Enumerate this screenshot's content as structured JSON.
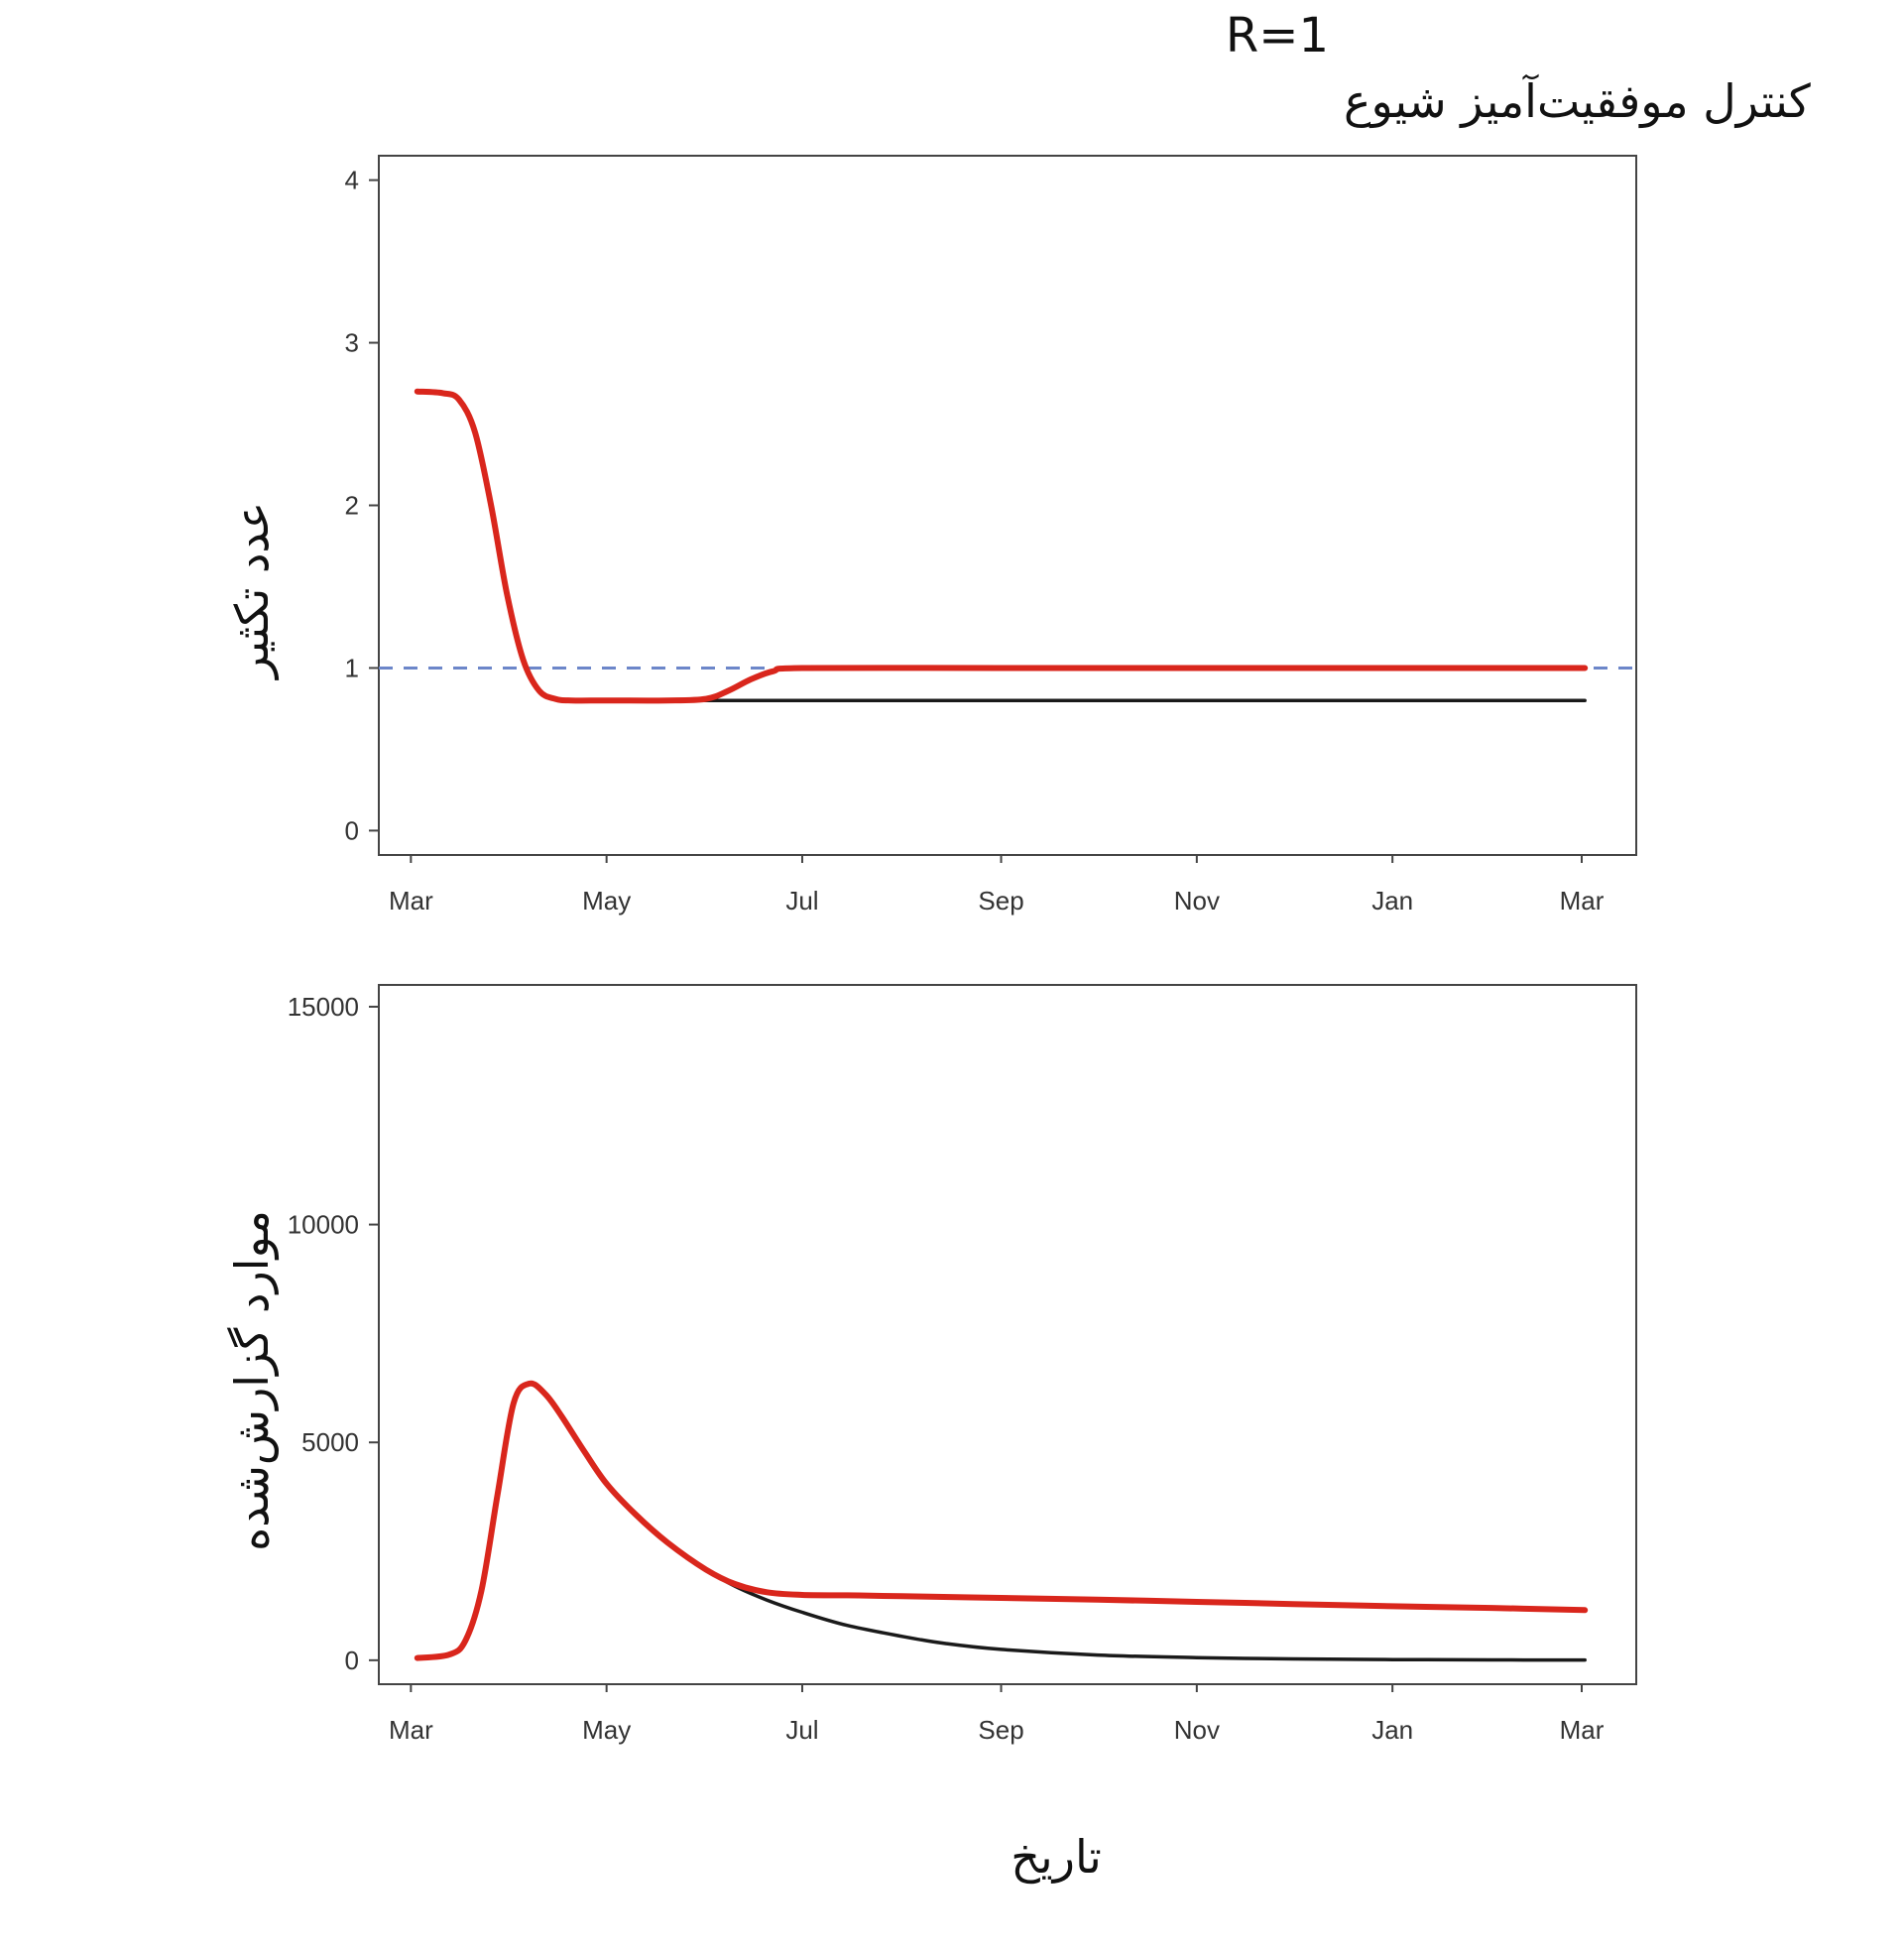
{
  "header": {
    "title_line1": "R=1",
    "title_line2": "کنترل موفقیت‌آمیز شیوع"
  },
  "colors": {
    "series_red": "#d9261c",
    "series_black": "#1a1a1a",
    "reference_line": "#6c86c9",
    "frame": "#444444"
  },
  "chart_data": [
    {
      "type": "line",
      "ylabel": "عدد تکثیر",
      "x_tick_labels": [
        "Mar",
        "May",
        "Jul",
        "Sep",
        "Nov",
        "Jan",
        "Mar"
      ],
      "x_ticks": [
        "2020-03-01",
        "2020-05-01",
        "2020-07-01",
        "2020-09-01",
        "2020-11-01",
        "2021-01-01",
        "2021-03-01"
      ],
      "xlim": [
        "2020-02-20",
        "2021-03-18"
      ],
      "ylim": [
        -0.15,
        4.15
      ],
      "y_ticks": [
        0,
        1,
        2,
        3,
        4
      ],
      "reference_line": {
        "y": 1,
        "style": "dashed"
      },
      "grid": false,
      "series": [
        {
          "color": "#1a1a1a",
          "x": [
            "2020-03-03",
            "2020-03-11",
            "2020-03-16",
            "2020-03-21",
            "2020-03-26",
            "2020-03-31",
            "2020-04-05",
            "2020-04-10",
            "2020-04-15",
            "2020-04-20",
            "2020-05-01",
            "2020-05-20",
            "2020-06-10",
            "2020-07-01",
            "2020-09-01",
            "2020-11-01",
            "2021-01-01",
            "2021-03-02"
          ],
          "y": [
            2.7,
            2.69,
            2.65,
            2.45,
            2.0,
            1.45,
            1.05,
            0.86,
            0.81,
            0.8,
            0.8,
            0.8,
            0.8,
            0.8,
            0.8,
            0.8,
            0.8,
            0.8
          ]
        },
        {
          "color": "#d9261c",
          "x": [
            "2020-03-03",
            "2020-03-11",
            "2020-03-16",
            "2020-03-21",
            "2020-03-26",
            "2020-03-31",
            "2020-04-05",
            "2020-04-10",
            "2020-04-15",
            "2020-04-20",
            "2020-05-01",
            "2020-05-20",
            "2020-06-01",
            "2020-06-08",
            "2020-06-15",
            "2020-06-22",
            "2020-07-01",
            "2020-09-01",
            "2020-11-01",
            "2021-01-01",
            "2021-03-02"
          ],
          "y": [
            2.7,
            2.69,
            2.65,
            2.45,
            2.0,
            1.45,
            1.05,
            0.86,
            0.81,
            0.8,
            0.8,
            0.8,
            0.81,
            0.86,
            0.93,
            0.98,
            1.0,
            1.0,
            1.0,
            1.0,
            1.0
          ]
        }
      ]
    },
    {
      "type": "line",
      "ylabel": "موارد گزارش‌شده",
      "xlabel": "تاریخ",
      "x_tick_labels": [
        "Mar",
        "May",
        "Jul",
        "Sep",
        "Nov",
        "Jan",
        "Mar"
      ],
      "x_ticks": [
        "2020-03-01",
        "2020-05-01",
        "2020-07-01",
        "2020-09-01",
        "2020-11-01",
        "2021-01-01",
        "2021-03-01"
      ],
      "xlim": [
        "2020-02-20",
        "2021-03-18"
      ],
      "ylim": [
        -550,
        15500
      ],
      "y_ticks": [
        0,
        5000,
        10000,
        15000
      ],
      "grid": false,
      "series": [
        {
          "color": "#1a1a1a",
          "x": [
            "2020-03-03",
            "2020-03-13",
            "2020-03-18",
            "2020-03-23",
            "2020-03-28",
            "2020-04-02",
            "2020-04-07",
            "2020-04-12",
            "2020-04-17",
            "2020-04-24",
            "2020-05-01",
            "2020-05-10",
            "2020-05-20",
            "2020-06-01",
            "2020-06-10",
            "2020-06-20",
            "2020-07-01",
            "2020-07-15",
            "2020-08-01",
            "2020-08-15",
            "2020-09-01",
            "2020-10-01",
            "2020-11-01",
            "2020-12-01",
            "2021-01-01",
            "2021-02-01",
            "2021-03-02"
          ],
          "y": [
            50,
            130,
            450,
            1600,
            3800,
            5900,
            6350,
            6100,
            5600,
            4800,
            4050,
            3350,
            2700,
            2080,
            1700,
            1380,
            1100,
            800,
            550,
            380,
            250,
            120,
            60,
            30,
            15,
            8,
            5
          ]
        },
        {
          "color": "#d9261c",
          "x": [
            "2020-03-03",
            "2020-03-13",
            "2020-03-18",
            "2020-03-23",
            "2020-03-28",
            "2020-04-02",
            "2020-04-07",
            "2020-04-12",
            "2020-04-17",
            "2020-04-24",
            "2020-05-01",
            "2020-05-10",
            "2020-05-20",
            "2020-06-01",
            "2020-06-10",
            "2020-06-20",
            "2020-07-01",
            "2020-07-15",
            "2020-08-01",
            "2020-09-01",
            "2020-10-01",
            "2020-11-01",
            "2020-12-01",
            "2021-01-01",
            "2021-02-01",
            "2021-03-02"
          ],
          "y": [
            50,
            130,
            450,
            1600,
            3800,
            5900,
            6350,
            6100,
            5600,
            4800,
            4050,
            3350,
            2700,
            2080,
            1750,
            1560,
            1500,
            1490,
            1470,
            1430,
            1390,
            1340,
            1290,
            1240,
            1200,
            1150
          ]
        }
      ]
    }
  ]
}
